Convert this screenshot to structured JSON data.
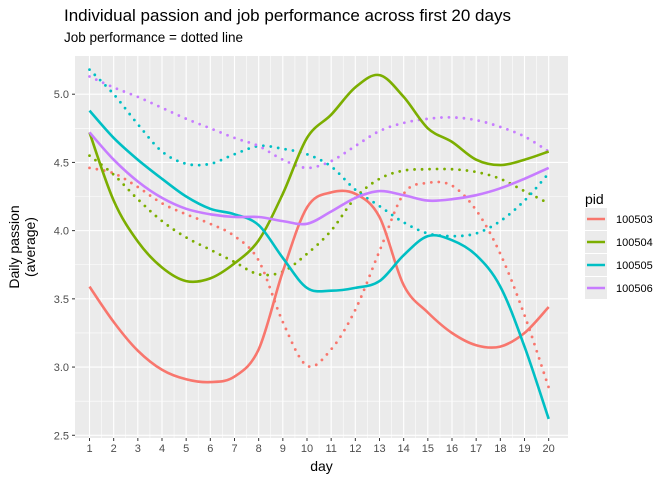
{
  "chart_data": {
    "type": "line",
    "title": "Individual passion and job performance across first 20 days",
    "subtitle": "Job performance = dotted line",
    "xlabel": "day",
    "ylabel_lines": [
      "Daily passion",
      "(average)"
    ],
    "x": [
      1,
      2,
      3,
      4,
      5,
      6,
      7,
      8,
      9,
      10,
      11,
      12,
      13,
      14,
      15,
      16,
      17,
      18,
      19,
      20
    ],
    "xlim": [
      0.4,
      20.8
    ],
    "ylim": [
      2.48,
      5.28
    ],
    "yticks": [
      2.5,
      3.0,
      3.5,
      4.0,
      4.5,
      5.0
    ],
    "ytick_labels": [
      "2.5",
      "3.0",
      "3.5",
      "4.0",
      "4.5",
      "5.0"
    ],
    "grid": true,
    "legend_title": "pid",
    "legend_position": "right",
    "series": [
      {
        "name": "100503",
        "color": "#F8766D",
        "passion": [
          3.59,
          3.33,
          3.12,
          2.98,
          2.91,
          2.89,
          2.93,
          3.13,
          3.7,
          4.17,
          4.28,
          4.27,
          4.1,
          3.6,
          3.4,
          3.25,
          3.16,
          3.15,
          3.25,
          3.44
        ],
        "performance": [
          4.46,
          4.42,
          4.32,
          4.2,
          4.12,
          4.05,
          3.96,
          3.78,
          3.33,
          3.01,
          3.13,
          3.42,
          3.85,
          4.27,
          4.35,
          4.33,
          4.15,
          3.83,
          3.38,
          2.85
        ]
      },
      {
        "name": "100504",
        "color": "#7CAE00",
        "passion": [
          4.72,
          4.22,
          3.92,
          3.73,
          3.63,
          3.65,
          3.76,
          3.93,
          4.27,
          4.68,
          4.85,
          5.05,
          5.14,
          4.98,
          4.75,
          4.65,
          4.52,
          4.48,
          4.52,
          4.58
        ],
        "performance": [
          4.55,
          4.41,
          4.23,
          4.07,
          3.95,
          3.86,
          3.77,
          3.68,
          3.7,
          3.83,
          4.0,
          4.24,
          4.38,
          4.44,
          4.45,
          4.45,
          4.43,
          4.38,
          4.29,
          4.2
        ]
      },
      {
        "name": "100505",
        "color": "#00BFC4",
        "passion": [
          4.88,
          4.68,
          4.52,
          4.38,
          4.25,
          4.16,
          4.12,
          4.04,
          3.8,
          3.58,
          3.56,
          3.58,
          3.63,
          3.82,
          3.96,
          3.93,
          3.82,
          3.59,
          3.15,
          2.62
        ],
        "performance": [
          5.18,
          5.0,
          4.78,
          4.58,
          4.49,
          4.49,
          4.56,
          4.62,
          4.6,
          4.56,
          4.47,
          4.3,
          4.18,
          4.06,
          3.98,
          3.96,
          3.98,
          4.07,
          4.22,
          4.42
        ]
      },
      {
        "name": "100506",
        "color": "#C77CFF",
        "passion": [
          4.72,
          4.52,
          4.36,
          4.24,
          4.16,
          4.12,
          4.1,
          4.1,
          4.07,
          4.05,
          4.14,
          4.24,
          4.29,
          4.26,
          4.22,
          4.23,
          4.26,
          4.31,
          4.38,
          4.46
        ],
        "performance": [
          5.13,
          5.05,
          4.98,
          4.9,
          4.82,
          4.75,
          4.68,
          4.62,
          4.52,
          4.46,
          4.51,
          4.62,
          4.73,
          4.79,
          4.82,
          4.83,
          4.81,
          4.76,
          4.69,
          4.58
        ]
      }
    ]
  }
}
